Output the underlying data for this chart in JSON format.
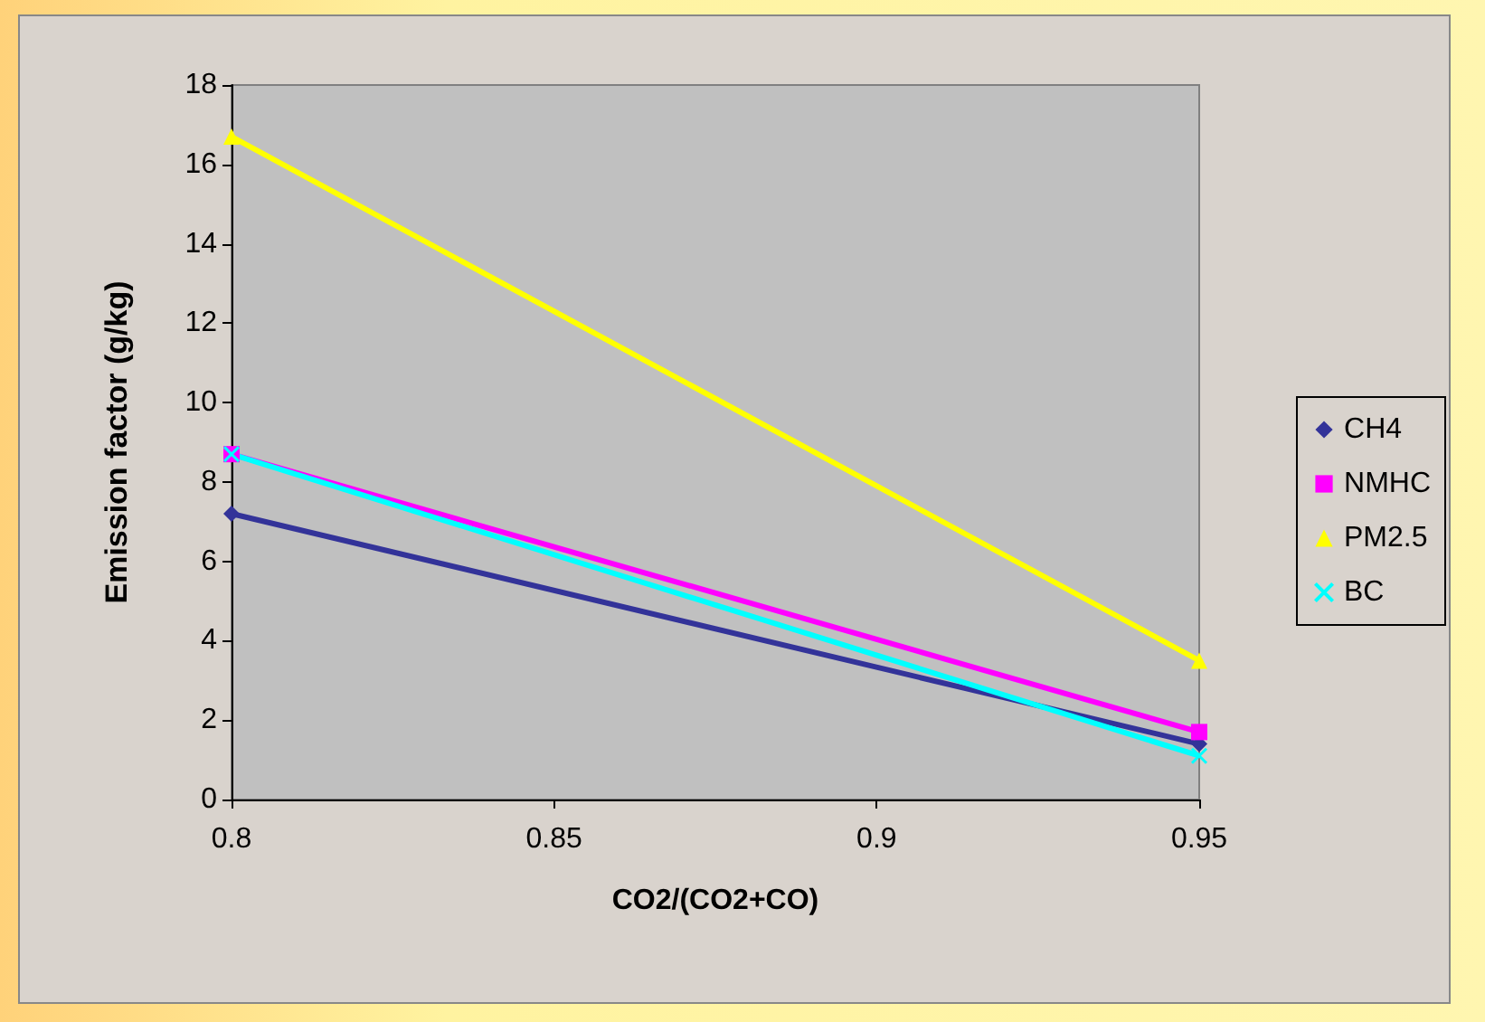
{
  "chart_data": {
    "type": "line",
    "xlabel": "CO2/(CO2+CO)",
    "ylabel": "Emission factor (g/kg)",
    "x": [
      0.8,
      0.95
    ],
    "series": [
      {
        "name": "CH4",
        "color": "#333399",
        "marker": "diamond",
        "values": [
          7.2,
          1.4
        ]
      },
      {
        "name": "NMHC",
        "color": "#ff00ff",
        "marker": "square",
        "values": [
          8.7,
          1.7
        ]
      },
      {
        "name": "PM2.5",
        "color": "#ffff00",
        "marker": "triangle",
        "values": [
          16.7,
          3.5
        ]
      },
      {
        "name": "BC",
        "color": "#00ffff",
        "marker": "cross",
        "values": [
          8.7,
          1.1
        ]
      }
    ],
    "xlim": [
      0.8,
      0.95
    ],
    "xticks": [
      0.8,
      0.85,
      0.9,
      0.95
    ],
    "ylim": [
      0,
      18
    ],
    "yticks": [
      0,
      2,
      4,
      6,
      8,
      10,
      12,
      14,
      16,
      18
    ],
    "grid": false,
    "legend": "right",
    "line_style": "solid"
  }
}
